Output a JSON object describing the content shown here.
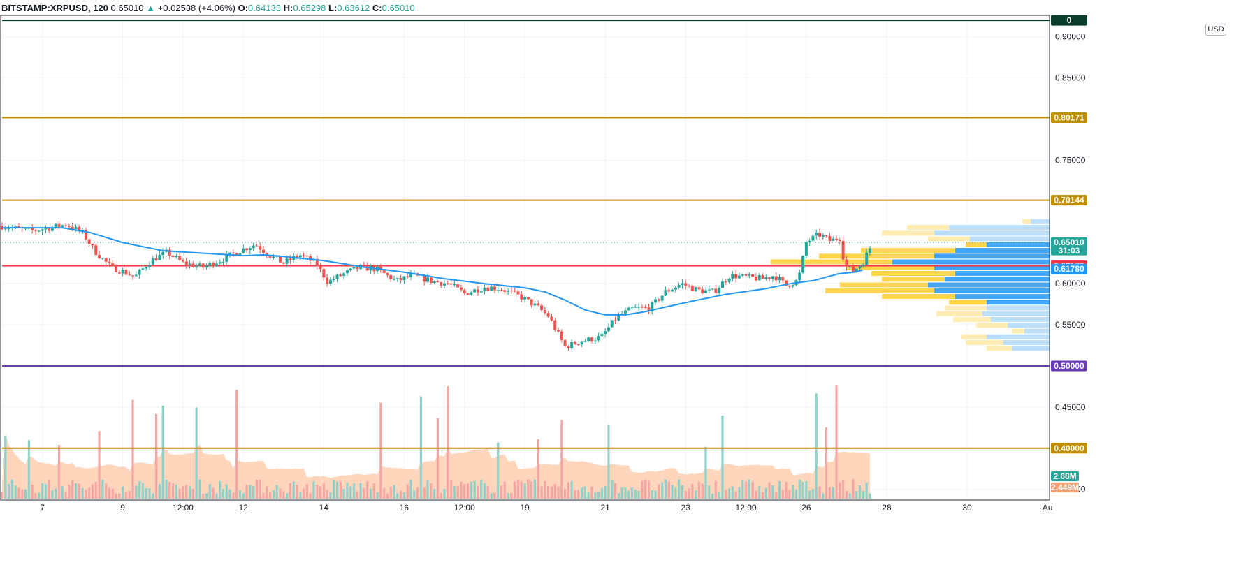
{
  "header": {
    "symbol": "BITSTAMP:XRPUSD, 120",
    "price": "0.65010",
    "arrow": "▲",
    "change": "+0.02538 (+4.06%)",
    "o_label": "O:",
    "o_value": "0.64133",
    "h_label": "H:",
    "h_value": "0.65298",
    "l_label": "L:",
    "l_value": "0.63612",
    "c_label": "C:",
    "c_value": "0.65010"
  },
  "currency_button": "USD",
  "colors": {
    "up": "#26a69a",
    "down": "#ef5350",
    "ma": "#2196f3",
    "level_gold": "#bf8f00",
    "level_red": "#f23645",
    "level_purple": "#673ab7",
    "level_dark": "#0b3d2e",
    "vol_up": "#8fd1c8",
    "vol_down": "#f4a6a6",
    "vol_ma_fill": "#ffc7a6",
    "vp_blue": "#42a5f5",
    "vp_blue_light": "#bbdefb",
    "vp_gold": "#ffd54f",
    "vp_gold_light": "#ffecb3"
  },
  "chart_data": {
    "type": "candlestick",
    "symbol": "BITSTAMP:XRPUSD",
    "interval": "120",
    "y_axis": {
      "ticks": [
        "0.90000",
        "0.85000",
        "0.75000",
        "0.60000",
        "0.55000",
        "0.45000",
        "0.35000"
      ],
      "tick_values": [
        0.9,
        0.85,
        0.75,
        0.6,
        0.55,
        0.45,
        0.35
      ],
      "range": [
        0.337,
        0.921
      ]
    },
    "x_axis": {
      "ticks": [
        {
          "label": "7",
          "day": 7
        },
        {
          "label": "9",
          "day": 9
        },
        {
          "label": "12:00",
          "day": 10.5
        },
        {
          "label": "12",
          "day": 12
        },
        {
          "label": "14",
          "day": 14
        },
        {
          "label": "16",
          "day": 16
        },
        {
          "label": "12:00",
          "day": 17.5
        },
        {
          "label": "19",
          "day": 19
        },
        {
          "label": "21",
          "day": 21
        },
        {
          "label": "23",
          "day": 23
        },
        {
          "label": "12:00",
          "day": 24.5
        },
        {
          "label": "26",
          "day": 26
        },
        {
          "label": "28",
          "day": 28
        },
        {
          "label": "30",
          "day": 30
        },
        {
          "label": "Au",
          "day": 32
        }
      ],
      "range": [
        6.0,
        32.05
      ]
    },
    "horizontal_levels": [
      {
        "value": 0.92,
        "label": "0",
        "color": "#0b3d2e"
      },
      {
        "value": 0.80171,
        "label": "0.80171",
        "color": "#bf8f00"
      },
      {
        "value": 0.70144,
        "label": "0.70144",
        "color": "#bf8f00"
      },
      {
        "value": 0.62179,
        "label": "0.62179",
        "color": "#f23645"
      },
      {
        "value": 0.5,
        "label": "0.50000",
        "color": "#673ab7"
      },
      {
        "value": 0.4,
        "label": "0.40000",
        "color": "#bf8f00"
      }
    ],
    "last_price": {
      "value": 0.6501,
      "label": "0.65010",
      "countdown": "31:03"
    },
    "ma_last": {
      "value": 0.6178,
      "label": "0.61780"
    },
    "volume_labels": [
      {
        "label": "2.68M",
        "color": "#26a69a"
      },
      {
        "label": "2.449M",
        "color": "#f7a072"
      }
    ],
    "price_waypoints": [
      {
        "day": 6.0,
        "price": 0.67
      },
      {
        "day": 6.7,
        "price": 0.664
      },
      {
        "day": 7.2,
        "price": 0.668
      },
      {
        "day": 7.6,
        "price": 0.672
      },
      {
        "day": 8.0,
        "price": 0.662
      },
      {
        "day": 8.3,
        "price": 0.64
      },
      {
        "day": 8.7,
        "price": 0.62
      },
      {
        "day": 9.0,
        "price": 0.615
      },
      {
        "day": 9.3,
        "price": 0.608
      },
      {
        "day": 9.7,
        "price": 0.628
      },
      {
        "day": 10.1,
        "price": 0.638
      },
      {
        "day": 10.5,
        "price": 0.625
      },
      {
        "day": 11.0,
        "price": 0.62
      },
      {
        "day": 11.5,
        "price": 0.63
      },
      {
        "day": 11.9,
        "price": 0.64
      },
      {
        "day": 12.3,
        "price": 0.648
      },
      {
        "day": 12.6,
        "price": 0.636
      },
      {
        "day": 13.0,
        "price": 0.625
      },
      {
        "day": 13.4,
        "price": 0.635
      },
      {
        "day": 13.8,
        "price": 0.625
      },
      {
        "day": 14.1,
        "price": 0.602
      },
      {
        "day": 14.5,
        "price": 0.612
      },
      {
        "day": 14.9,
        "price": 0.62
      },
      {
        "day": 15.3,
        "price": 0.618
      },
      {
        "day": 15.8,
        "price": 0.603
      },
      {
        "day": 16.2,
        "price": 0.61
      },
      {
        "day": 16.7,
        "price": 0.603
      },
      {
        "day": 17.1,
        "price": 0.6
      },
      {
        "day": 17.5,
        "price": 0.588
      },
      {
        "day": 18.0,
        "price": 0.596
      },
      {
        "day": 18.4,
        "price": 0.594
      },
      {
        "day": 18.9,
        "price": 0.584
      },
      {
        "day": 19.3,
        "price": 0.572
      },
      {
        "day": 19.6,
        "price": 0.56
      },
      {
        "day": 20.0,
        "price": 0.523
      },
      {
        "day": 20.4,
        "price": 0.53
      },
      {
        "day": 20.9,
        "price": 0.535
      },
      {
        "day": 21.3,
        "price": 0.56
      },
      {
        "day": 21.7,
        "price": 0.57
      },
      {
        "day": 22.1,
        "price": 0.57
      },
      {
        "day": 22.5,
        "price": 0.59
      },
      {
        "day": 22.9,
        "price": 0.6
      },
      {
        "day": 23.3,
        "price": 0.592
      },
      {
        "day": 23.7,
        "price": 0.59
      },
      {
        "day": 24.1,
        "price": 0.61
      },
      {
        "day": 24.5,
        "price": 0.608
      },
      {
        "day": 24.9,
        "price": 0.606
      },
      {
        "day": 25.2,
        "price": 0.61
      },
      {
        "day": 25.5,
        "price": 0.598
      },
      {
        "day": 25.8,
        "price": 0.604
      },
      {
        "day": 26.0,
        "price": 0.65
      },
      {
        "day": 26.3,
        "price": 0.66
      },
      {
        "day": 26.6,
        "price": 0.652
      },
      {
        "day": 26.85,
        "price": 0.656
      },
      {
        "day": 26.95,
        "price": 0.622
      },
      {
        "day": 27.15,
        "price": 0.615
      },
      {
        "day": 27.4,
        "price": 0.625
      },
      {
        "day": 27.55,
        "price": 0.64
      },
      {
        "day": 27.65,
        "price": 0.6501
      }
    ],
    "ma_waypoints": [
      {
        "day": 6.0,
        "price": 0.668
      },
      {
        "day": 7.5,
        "price": 0.668
      },
      {
        "day": 8.2,
        "price": 0.662
      },
      {
        "day": 9.0,
        "price": 0.65
      },
      {
        "day": 10.0,
        "price": 0.64
      },
      {
        "day": 11.0,
        "price": 0.637
      },
      {
        "day": 12.0,
        "price": 0.634
      },
      {
        "day": 12.5,
        "price": 0.635
      },
      {
        "day": 13.0,
        "price": 0.633
      },
      {
        "day": 14.0,
        "price": 0.628
      },
      {
        "day": 15.0,
        "price": 0.62
      },
      {
        "day": 16.0,
        "price": 0.614
      },
      {
        "day": 17.0,
        "price": 0.606
      },
      {
        "day": 18.0,
        "price": 0.6
      },
      {
        "day": 19.0,
        "price": 0.595
      },
      {
        "day": 19.5,
        "price": 0.59
      },
      {
        "day": 20.0,
        "price": 0.58
      },
      {
        "day": 20.5,
        "price": 0.568
      },
      {
        "day": 21.0,
        "price": 0.562
      },
      {
        "day": 21.5,
        "price": 0.562
      },
      {
        "day": 22.0,
        "price": 0.566
      },
      {
        "day": 23.0,
        "price": 0.577
      },
      {
        "day": 24.0,
        "price": 0.587
      },
      {
        "day": 25.0,
        "price": 0.594
      },
      {
        "day": 25.6,
        "price": 0.6
      },
      {
        "day": 26.2,
        "price": 0.604
      },
      {
        "day": 26.8,
        "price": 0.612
      },
      {
        "day": 27.2,
        "price": 0.614
      },
      {
        "day": 27.5,
        "price": 0.6178
      }
    ],
    "volume_profile": [
      {
        "price": 0.675,
        "up": 0.09,
        "down": 0.04,
        "faded": true
      },
      {
        "price": 0.668,
        "up": 0.48,
        "down": 0.2,
        "faded": true
      },
      {
        "price": 0.661,
        "up": 0.55,
        "down": 0.25,
        "faded": true
      },
      {
        "price": 0.654,
        "up": 0.38,
        "down": 0.2,
        "faded": true
      },
      {
        "price": 0.647,
        "up": 0.3,
        "down": 0.1,
        "faded": false
      },
      {
        "price": 0.64,
        "up": 0.45,
        "down": 0.45,
        "faded": false
      },
      {
        "price": 0.633,
        "up": 0.55,
        "down": 0.55,
        "faded": false
      },
      {
        "price": 0.626,
        "up": 0.75,
        "down": 0.58,
        "faded": false
      },
      {
        "price": 0.619,
        "up": 0.55,
        "down": 0.42,
        "faded": false
      },
      {
        "price": 0.612,
        "up": 0.45,
        "down": 0.4,
        "faded": false
      },
      {
        "price": 0.605,
        "up": 0.5,
        "down": 0.3,
        "faded": false
      },
      {
        "price": 0.598,
        "up": 0.58,
        "down": 0.42,
        "faded": false
      },
      {
        "price": 0.591,
        "up": 0.55,
        "down": 0.52,
        "faded": false
      },
      {
        "price": 0.584,
        "up": 0.45,
        "down": 0.35,
        "faded": false
      },
      {
        "price": 0.577,
        "up": 0.3,
        "down": 0.18,
        "faded": false
      },
      {
        "price": 0.57,
        "up": 0.3,
        "down": 0.2,
        "faded": true
      },
      {
        "price": 0.563,
        "up": 0.32,
        "down": 0.22,
        "faded": true
      },
      {
        "price": 0.556,
        "up": 0.28,
        "down": 0.18,
        "faded": true
      },
      {
        "price": 0.549,
        "up": 0.2,
        "down": 0.15,
        "faded": true
      },
      {
        "price": 0.542,
        "up": 0.12,
        "down": 0.06,
        "faded": true
      },
      {
        "price": 0.535,
        "up": 0.3,
        "down": 0.12,
        "faded": true
      },
      {
        "price": 0.528,
        "up": 0.22,
        "down": 0.18,
        "faded": true
      },
      {
        "price": 0.521,
        "up": 0.18,
        "down": 0.12,
        "faded": true
      }
    ]
  }
}
